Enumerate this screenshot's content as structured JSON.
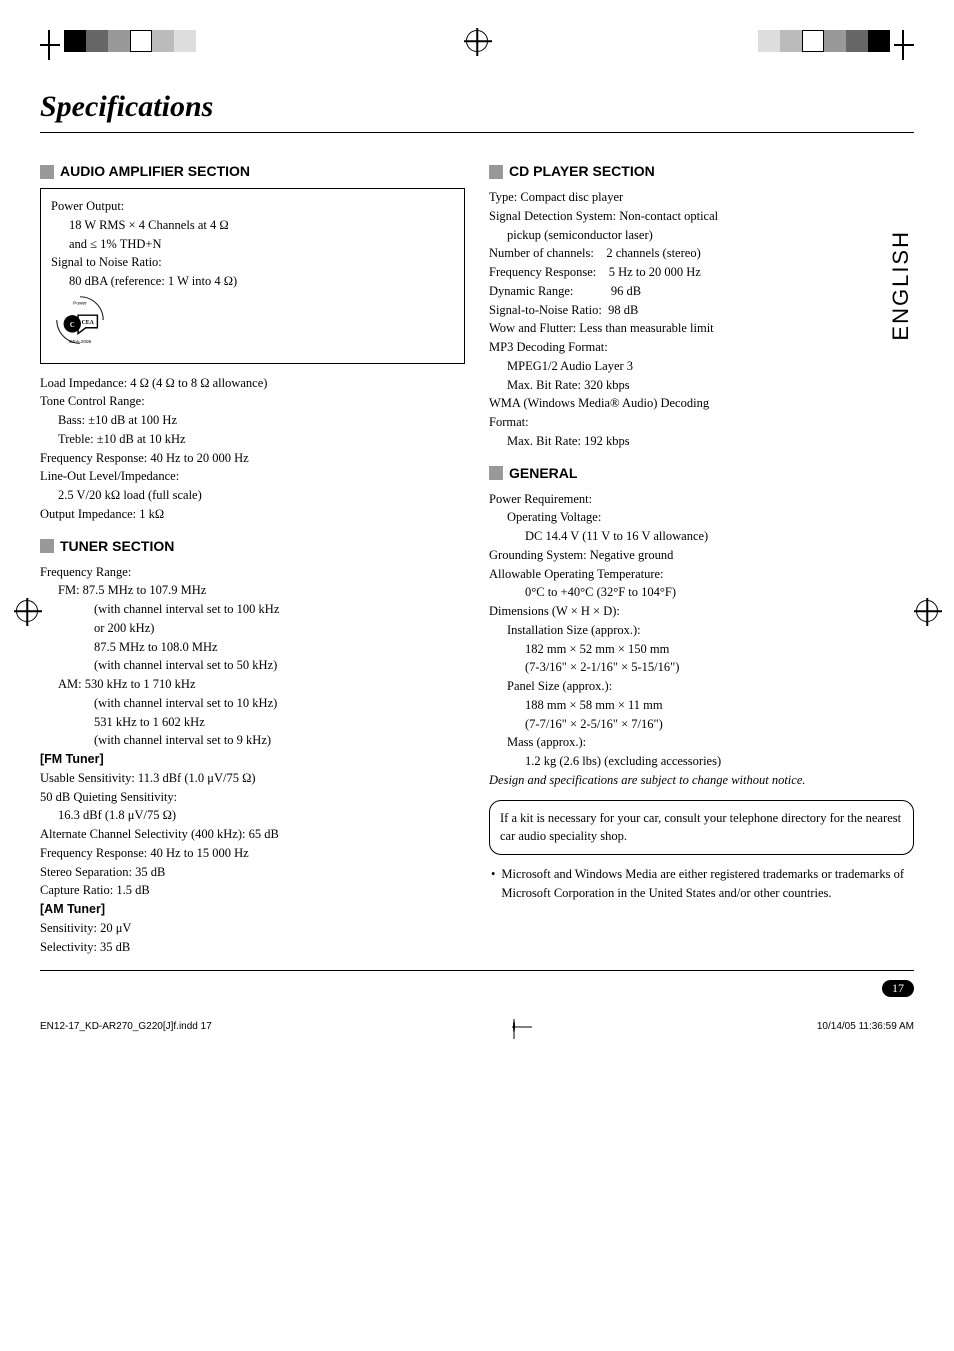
{
  "regColors": [
    "#000000",
    "#666666",
    "#999999",
    "#ffffff",
    "#bbbbbb",
    "#dddddd"
  ],
  "title": "Specifications",
  "langTab": "ENGLISH",
  "pageNum": "17",
  "sections": {
    "amp": {
      "heading": "AUDIO AMPLIFIER SECTION",
      "box": {
        "l1": "Power Output:",
        "l2": "18 W RMS × 4 Channels at 4 Ω",
        "l3": "and ≤ 1% THD+N",
        "l4": "Signal to Noise Ratio:",
        "l5": "80 dBA (reference: 1 W into 4 Ω)"
      },
      "body": {
        "l1": "Load Impedance: 4 Ω (4 Ω to 8 Ω allowance)",
        "l2": "Tone Control Range:",
        "l3": "Bass:   ±10 dB at 100 Hz",
        "l4": "Treble: ±10 dB at 10 kHz",
        "l5": "Frequency Response: 40 Hz to 20 000 Hz",
        "l6": "Line-Out Level/Impedance:",
        "l7": "2.5 V/20 kΩ load (full scale)",
        "l8": "Output Impedance: 1 kΩ"
      }
    },
    "tuner": {
      "heading": "TUNER SECTION",
      "body": {
        "l1": "Frequency Range:",
        "l2": "FM:  87.5 MHz to 107.9 MHz",
        "l3": "(with channel interval set to 100 kHz",
        "l4": "or 200 kHz)",
        "l5": "87.5 MHz to 108.0 MHz",
        "l6": "(with channel interval set to 50 kHz)",
        "l7": "AM: 530 kHz to 1 710 kHz",
        "l8": "(with channel interval set to 10 kHz)",
        "l9": "531 kHz to 1 602 kHz",
        "l10": "(with channel interval set to 9 kHz)"
      },
      "fm": {
        "h": "[FM Tuner]",
        "l1": "Usable Sensitivity: 11.3 dBf (1.0 μV/75 Ω)",
        "l2": "50 dB Quieting Sensitivity:",
        "l3": "16.3 dBf (1.8 μV/75 Ω)",
        "l4": "Alternate Channel Selectivity (400 kHz): 65 dB",
        "l5": "Frequency Response: 40 Hz to 15 000 Hz",
        "l6": "Stereo Separation: 35 dB",
        "l7": "Capture Ratio: 1.5 dB"
      },
      "am": {
        "h": "[AM Tuner]",
        "l1": "Sensitivity: 20 μV",
        "l2": "Selectivity: 35 dB"
      }
    },
    "cd": {
      "heading": "CD PLAYER SECTION",
      "body": {
        "l1": "Type: Compact disc player",
        "l2": "Signal Detection System: Non-contact optical",
        "l3": "pickup (semiconductor laser)",
        "l4": "Number of channels:    2 channels (stereo)",
        "l5": "Frequency Response:    5 Hz to 20 000 Hz",
        "l6": "Dynamic Range:            96 dB",
        "l7": "Signal-to-Noise Ratio:  98 dB",
        "l8": "Wow and Flutter: Less than measurable limit",
        "l9": "MP3 Decoding Format:",
        "l10": "MPEG1/2 Audio Layer 3",
        "l11": "Max. Bit Rate: 320 kbps",
        "l12": "WMA (Windows Media® Audio) Decoding",
        "l13": "Format:",
        "l14": "Max. Bit Rate: 192 kbps"
      }
    },
    "general": {
      "heading": "GENERAL",
      "body": {
        "l1": "Power Requirement:",
        "l2": "Operating Voltage:",
        "l3": "DC 14.4 V (11 V to 16 V allowance)",
        "l4": "Grounding System: Negative ground",
        "l5": "Allowable Operating Temperature:",
        "l6": "0°C to +40°C (32°F to 104°F)",
        "l7": "Dimensions (W × H × D):",
        "l8": "Installation Size (approx.):",
        "l9": "182 mm × 52 mm × 150 mm",
        "l10": "(7-3/16\" × 2-1/16\" × 5-15/16\")",
        "l11": "Panel Size (approx.):",
        "l12": "188 mm × 58 mm × 11 mm",
        "l13": "(7-7/16\" × 2-5/16\" × 7/16\")",
        "l14": "Mass (approx.):",
        "l15": "1.2 kg (2.6 lbs) (excluding accessories)"
      }
    }
  },
  "note": "Design and specifications are subject to change without notice.",
  "kitbox": "If a kit is necessary for your car, consult your telephone directory for the nearest car audio speciality shop.",
  "trademark": "Microsoft and Windows Media are either registered trademarks or trademarks of Microsoft Corporation in the United States and/or other countries.",
  "footer": {
    "left": "EN12-17_KD-AR270_G220[J]f.indd   17",
    "right": "10/14/05  11:36:59 AM"
  }
}
